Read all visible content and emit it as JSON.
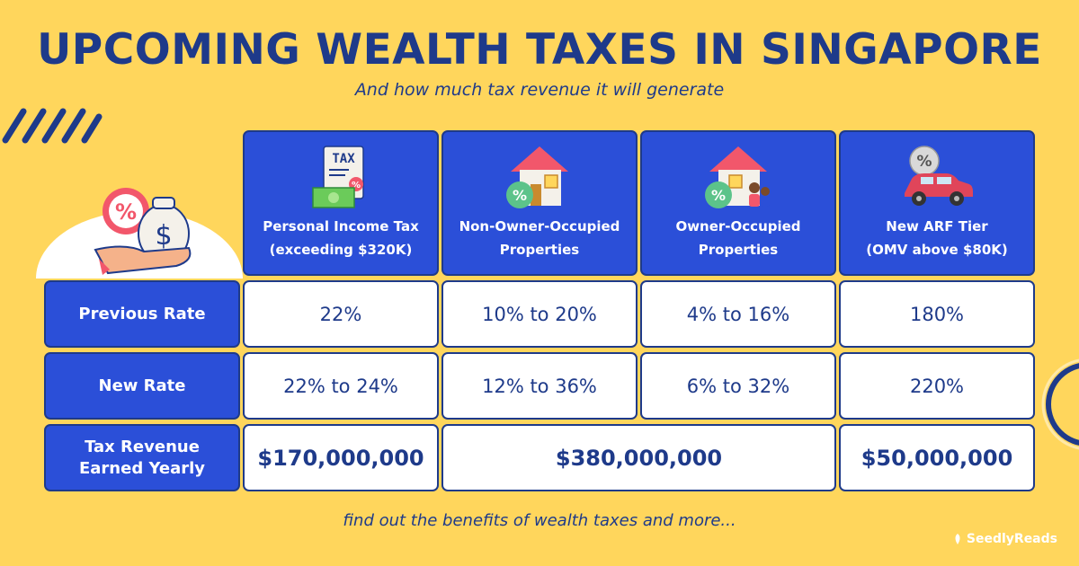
{
  "title": "UPCOMING WEALTH TAXES IN SINGAPORE",
  "subtitle": "And how much tax revenue it will generate",
  "footer": "find out the benefits of wealth taxes and more...",
  "brand": "SeedlyReads",
  "columns": [
    {
      "line1": "Personal Income Tax",
      "line2": "(exceeding $320K)",
      "icon": "tax-document-icon"
    },
    {
      "line1": "Non-Owner-Occupied",
      "line2": "Properties",
      "icon": "house-percent-icon"
    },
    {
      "line1": "Owner-Occupied",
      "line2": "Properties",
      "icon": "family-house-percent-icon"
    },
    {
      "line1": "New ARF Tier",
      "line2": "(OMV above $80K)",
      "icon": "car-percent-icon"
    }
  ],
  "rows": {
    "previous": {
      "label": "Previous Rate",
      "values": [
        "22%",
        "10% to 20%",
        "4% to 16%",
        "180%"
      ]
    },
    "new": {
      "label": "New Rate",
      "values": [
        "22% to 24%",
        "12% to 36%",
        "6% to 32%",
        "220%"
      ]
    },
    "revenue": {
      "label_line1": "Tax Revenue",
      "label_line2": "Earned Yearly",
      "income": "$170,000,000",
      "properties": "$380,000,000",
      "arf": "$50,000,000"
    }
  },
  "colors": {
    "background": "#FFD65C",
    "navy": "#1E3A8A",
    "blue": "#2B4FD8",
    "white": "#FFFFFF"
  }
}
